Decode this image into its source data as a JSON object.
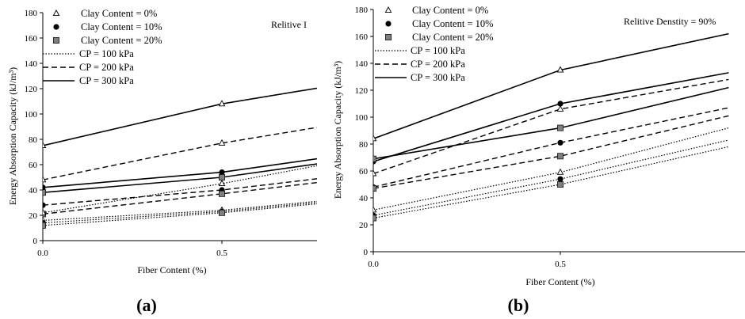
{
  "panels": [
    {
      "label": "(a)",
      "annotation": "Relitive I",
      "legend": {
        "markers": [
          {
            "label": "Clay Content = 0%",
            "marker": "triangle-open"
          },
          {
            "label": "Clay Content = 10%",
            "marker": "circle-filled"
          },
          {
            "label": "Clay Content = 20%",
            "marker": "square-gray"
          }
        ],
        "lines": [
          {
            "label": "CP = 100 kPa",
            "style": "dotted"
          },
          {
            "label": "CP = 200 kPa",
            "style": "dashed"
          },
          {
            "label": "CP = 300 kPa",
            "style": "solid"
          }
        ]
      }
    },
    {
      "label": "(b)",
      "annotation": "Relitive Denstity = 90%",
      "legend": {
        "markers": [
          {
            "label": "Clay Content = 0%",
            "marker": "triangle-open"
          },
          {
            "label": "Clay Content = 10%",
            "marker": "circle-filled"
          },
          {
            "label": "Clay Content = 20%",
            "marker": "square-gray"
          }
        ],
        "lines": [
          {
            "label": "CP = 100 kPa",
            "style": "dotted"
          },
          {
            "label": "CP = 200 kPa",
            "style": "dashed"
          },
          {
            "label": "CP = 300 kPa",
            "style": "solid"
          }
        ]
      }
    }
  ],
  "chart_data": [
    {
      "type": "line",
      "xlabel": "Fiber Content (%)",
      "ylabel": "Energy Absorption Capacity (kJ/m³)",
      "xlim": [
        0,
        0.8
      ],
      "ylim": [
        0,
        180
      ],
      "xticks": [
        "0.0",
        "0.5"
      ],
      "xtick_values": [
        0,
        0.5
      ],
      "yticks": [
        0,
        20,
        40,
        60,
        80,
        100,
        120,
        140,
        160,
        180
      ],
      "grid": false,
      "legend_position": "top-left",
      "series": [
        {
          "clay": "0%",
          "cp": "100 kPa",
          "x": [
            0,
            0.5,
            0.8
          ],
          "y": [
            16,
            24,
            32
          ]
        },
        {
          "clay": "10%",
          "cp": "100 kPa",
          "x": [
            0,
            0.5,
            0.8
          ],
          "y": [
            14,
            23,
            31
          ]
        },
        {
          "clay": "20%",
          "cp": "100 kPa",
          "x": [
            0,
            0.5,
            0.8
          ],
          "y": [
            12,
            22,
            30
          ]
        },
        {
          "clay": "0%",
          "cp": "200 kPa",
          "x": [
            0,
            0.5,
            0.8
          ],
          "y": [
            48,
            77,
            91
          ]
        },
        {
          "clay": "10%",
          "cp": "200 kPa",
          "x": [
            0,
            0.5,
            0.8
          ],
          "y": [
            28,
            40,
            50
          ]
        },
        {
          "clay": "20%",
          "cp": "200 kPa",
          "x": [
            0,
            0.5,
            0.8
          ],
          "y": [
            21,
            37,
            47
          ]
        },
        {
          "clay": "0%",
          "cp": "300 kPa",
          "x": [
            0,
            0.5,
            0.8
          ],
          "y": [
            75,
            108,
            122
          ]
        },
        {
          "clay": "10%",
          "cp": "300 kPa",
          "x": [
            0,
            0.5,
            0.8
          ],
          "y": [
            42,
            54,
            66
          ]
        },
        {
          "clay": "20%",
          "cp": "300 kPa",
          "x": [
            0,
            0.5,
            0.8
          ],
          "y": [
            38,
            50,
            62
          ]
        },
        {
          "clay": "0%",
          "cp": "100 kPa (upper)",
          "x": [
            0,
            0.5,
            0.8
          ],
          "y": [
            22,
            45,
            61
          ]
        }
      ]
    },
    {
      "type": "line",
      "xlabel": "Fiber Content (%)",
      "ylabel": "Energy Absorption Capacity (kJ/m³)",
      "xlim": [
        0,
        0.95
      ],
      "ylim": [
        0,
        180
      ],
      "xticks": [
        "0.0",
        "0.5"
      ],
      "xtick_values": [
        0,
        0.5
      ],
      "yticks": [
        0,
        20,
        40,
        60,
        80,
        100,
        120,
        140,
        160,
        180
      ],
      "grid": false,
      "legend_position": "top-left",
      "series": [
        {
          "clay": "0%",
          "cp": "100 kPa",
          "x": [
            0,
            0.5,
            0.95
          ],
          "y": [
            31,
            59,
            92
          ]
        },
        {
          "clay": "10%",
          "cp": "100 kPa",
          "x": [
            0,
            0.5,
            0.95
          ],
          "y": [
            27,
            54,
            83
          ]
        },
        {
          "clay": "20%",
          "cp": "100 kPa",
          "x": [
            0,
            0.5,
            0.95
          ],
          "y": [
            25,
            50,
            78
          ]
        },
        {
          "clay": "0%",
          "cp": "200 kPa",
          "x": [
            0,
            0.5,
            0.95
          ],
          "y": [
            58,
            106,
            128
          ]
        },
        {
          "clay": "10%",
          "cp": "200 kPa",
          "x": [
            0,
            0.5,
            0.95
          ],
          "y": [
            48,
            81,
            107
          ]
        },
        {
          "clay": "20%",
          "cp": "200 kPa",
          "x": [
            0,
            0.5,
            0.95
          ],
          "y": [
            47,
            71,
            101
          ]
        },
        {
          "clay": "0%",
          "cp": "300 kPa",
          "x": [
            0,
            0.5,
            0.95
          ],
          "y": [
            84,
            135,
            162
          ]
        },
        {
          "clay": "10%",
          "cp": "300 kPa",
          "x": [
            0,
            0.5,
            0.95
          ],
          "y": [
            67,
            110,
            133
          ]
        },
        {
          "clay": "20%",
          "cp": "300 kPa",
          "x": [
            0,
            0.5,
            0.95
          ],
          "y": [
            69,
            92,
            122
          ]
        }
      ]
    }
  ]
}
